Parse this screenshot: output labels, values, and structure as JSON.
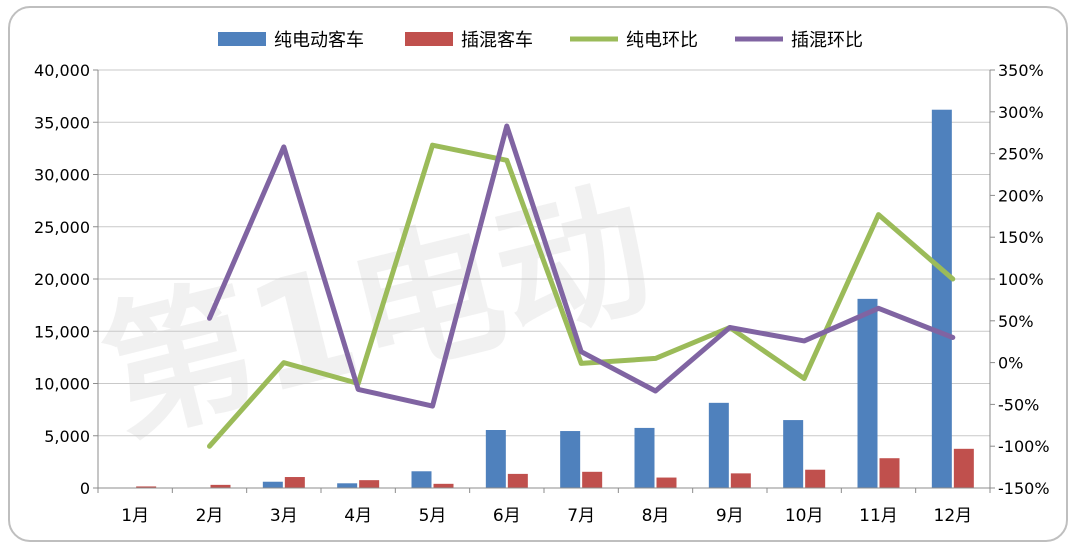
{
  "chart_data": {
    "type": "bar",
    "categories": [
      "1月",
      "2月",
      "3月",
      "4月",
      "5月",
      "6月",
      "7月",
      "8月",
      "9月",
      "10月",
      "11月",
      "12月"
    ],
    "series": [
      {
        "name": "纯电动客车",
        "type": "bar",
        "axis": "left",
        "color": "#4F81BD",
        "values": [
          0,
          0,
          600,
          450,
          1600,
          5550,
          5450,
          5750,
          8150,
          6500,
          18100,
          36200
        ]
      },
      {
        "name": "插混客车",
        "type": "bar",
        "axis": "left",
        "color": "#C0504D",
        "values": [
          150,
          300,
          1050,
          750,
          400,
          1350,
          1550,
          1000,
          1400,
          1750,
          2850,
          3750
        ]
      },
      {
        "name": "纯电环比",
        "type": "line",
        "axis": "right",
        "color": "#9BBB59",
        "values": [
          null,
          -100,
          0,
          -25,
          260,
          242,
          -1,
          5,
          42,
          -19,
          177,
          100
        ]
      },
      {
        "name": "插混环比",
        "type": "line",
        "axis": "right",
        "color": "#8064A2",
        "values": [
          null,
          53,
          258,
          -32,
          -52,
          283,
          13,
          -34,
          42,
          26,
          65,
          30
        ]
      }
    ],
    "left_axis": {
      "min": 0,
      "max": 40000,
      "step": 5000,
      "ticks": [
        "0",
        "5,000",
        "10,000",
        "15,000",
        "20,000",
        "25,000",
        "30,000",
        "35,000",
        "40,000"
      ]
    },
    "right_axis": {
      "min": -150,
      "max": 350,
      "step": 50,
      "ticks": [
        "-150%",
        "-100%",
        "-50%",
        "0%",
        "50%",
        "100%",
        "150%",
        "200%",
        "250%",
        "300%",
        "350%"
      ]
    },
    "legend_position": "top",
    "grid": true
  }
}
